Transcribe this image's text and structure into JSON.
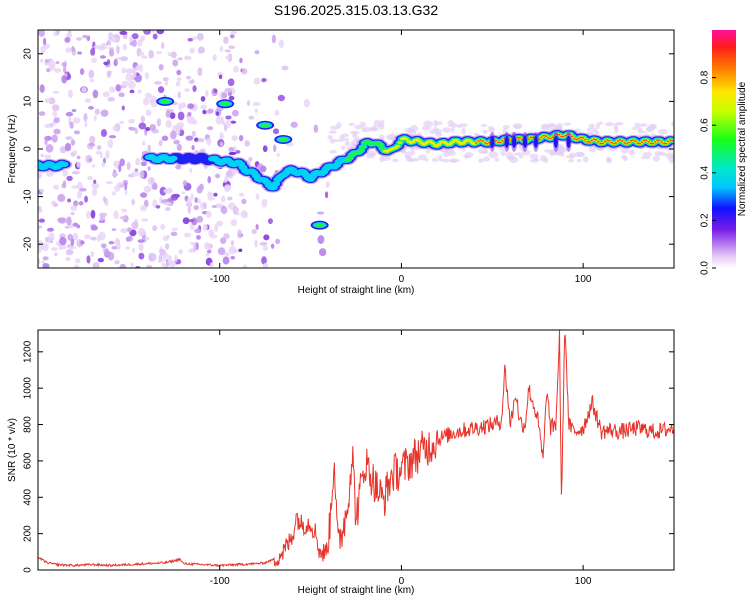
{
  "title": "S196.2025.315.03.13.G32",
  "chart_data": [
    {
      "type": "heatmap",
      "title": "S196.2025.315.03.13.G32",
      "xlabel": "Height of straight line (km)",
      "ylabel": "Frequency (Hz)",
      "xlim": [
        -200,
        150
      ],
      "ylim": [
        -25,
        25
      ],
      "xticks": [
        -100,
        0,
        100
      ],
      "yticks": [
        -20,
        -10,
        0,
        10,
        20
      ],
      "colorbar": {
        "label": "Normalized spectral amplitude",
        "range": [
          0,
          1
        ],
        "ticks": [
          "0.0",
          "0.2",
          "0.4",
          "0.6",
          "0.8"
        ]
      },
      "ridge": {
        "description_points_x_km": [
          -200,
          -190,
          -160,
          -150,
          -140,
          -130,
          -120,
          -110,
          -100,
          -90,
          -85,
          -80,
          -75,
          -70,
          -65,
          -60,
          -55,
          -50,
          -45,
          -40,
          -35,
          -30,
          -25,
          -20,
          -15,
          -10,
          -5,
          0,
          10,
          20,
          30,
          40,
          50,
          60,
          70,
          80,
          90,
          100,
          110,
          120,
          130,
          150
        ],
        "frequency_hz": [
          -3.5,
          -3.5,
          -3,
          -2.5,
          -2,
          -2,
          -2,
          -2,
          -2.5,
          -3,
          -4.5,
          -5.5,
          -7,
          -8,
          -5,
          -4.5,
          -5,
          -6,
          -5,
          -4,
          -3,
          -2,
          -1,
          1,
          1.5,
          0,
          -0.5,
          2,
          1.5,
          1,
          1.5,
          1.5,
          1.5,
          2,
          2,
          2.5,
          3,
          2,
          1.5,
          1.5,
          1.5,
          1.5
        ]
      },
      "secondary_features": [
        {
          "x_km": -130,
          "frequency_hz": 10
        },
        {
          "x_km": -97,
          "frequency_hz": 9.5
        },
        {
          "x_km": -75,
          "frequency_hz": 5
        },
        {
          "x_km": -65,
          "frequency_hz": 2
        },
        {
          "x_km": -45,
          "frequency_hz": -16
        }
      ]
    },
    {
      "type": "line",
      "xlabel": "Height of straight line (km)",
      "ylabel": "SNR (10 * v/v)",
      "xlim": [
        -200,
        150
      ],
      "ylim": [
        0,
        1320
      ],
      "xticks": [
        -100,
        0,
        100
      ],
      "yticks": [
        0,
        200,
        400,
        600,
        800,
        1000,
        1200
      ],
      "series": [
        {
          "name": "SNR",
          "color": "#e8332a",
          "x": [
            -200,
            -195,
            -190,
            -180,
            -170,
            -160,
            -150,
            -140,
            -130,
            -125,
            -122,
            -120,
            -110,
            -100,
            -90,
            -80,
            -75,
            -70,
            -65,
            -60,
            -58,
            -55,
            -50,
            -47,
            -45,
            -42,
            -40,
            -37,
            -35,
            -30,
            -27,
            -25,
            -20,
            -15,
            -10,
            -5,
            0,
            5,
            10,
            15,
            20,
            25,
            30,
            40,
            50,
            55,
            57,
            60,
            63,
            65,
            68,
            70,
            75,
            78,
            80,
            82,
            85,
            87,
            88,
            90,
            92,
            95,
            100,
            105,
            110,
            115,
            120,
            130,
            140,
            150
          ],
          "y": [
            70,
            40,
            30,
            25,
            30,
            25,
            30,
            35,
            40,
            50,
            60,
            35,
            30,
            25,
            30,
            35,
            40,
            60,
            100,
            180,
            300,
            250,
            260,
            200,
            100,
            90,
            160,
            630,
            120,
            330,
            650,
            280,
            600,
            480,
            380,
            530,
            550,
            600,
            650,
            680,
            720,
            740,
            760,
            780,
            800,
            820,
            1110,
            800,
            980,
            820,
            790,
            1000,
            830,
            600,
            1000,
            780,
            800,
            1290,
            350,
            1370,
            800,
            760,
            780,
            920,
            760,
            770,
            760,
            780,
            760,
            780
          ]
        }
      ]
    }
  ]
}
